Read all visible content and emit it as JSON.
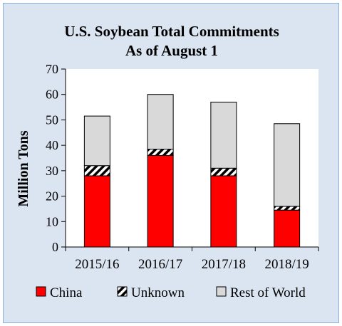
{
  "chart_data": {
    "type": "bar",
    "stacked": true,
    "title": "U.S. Soybean Total Commitments",
    "subtitle": "As of August 1",
    "xlabel": "",
    "ylabel": "Million Tons",
    "categories": [
      "2015/16",
      "2016/17",
      "2017/18",
      "2018/19"
    ],
    "ylim": [
      0,
      70
    ],
    "yticks": [
      0,
      10,
      20,
      30,
      40,
      50,
      60,
      70
    ],
    "grid": false,
    "legend_position": "bottom",
    "series": [
      {
        "name": "China",
        "values": [
          28,
          36,
          28,
          14.5
        ],
        "color": "#ff0000",
        "pattern": "solid"
      },
      {
        "name": "Unknown",
        "values": [
          4,
          2.5,
          3,
          1.5
        ],
        "color": "#ffffff",
        "pattern": "diagonal-stripes"
      },
      {
        "name": "Rest of World",
        "values": [
          19.5,
          21.5,
          26,
          32.5
        ],
        "color": "#d9d9d9",
        "pattern": "solid"
      }
    ]
  }
}
